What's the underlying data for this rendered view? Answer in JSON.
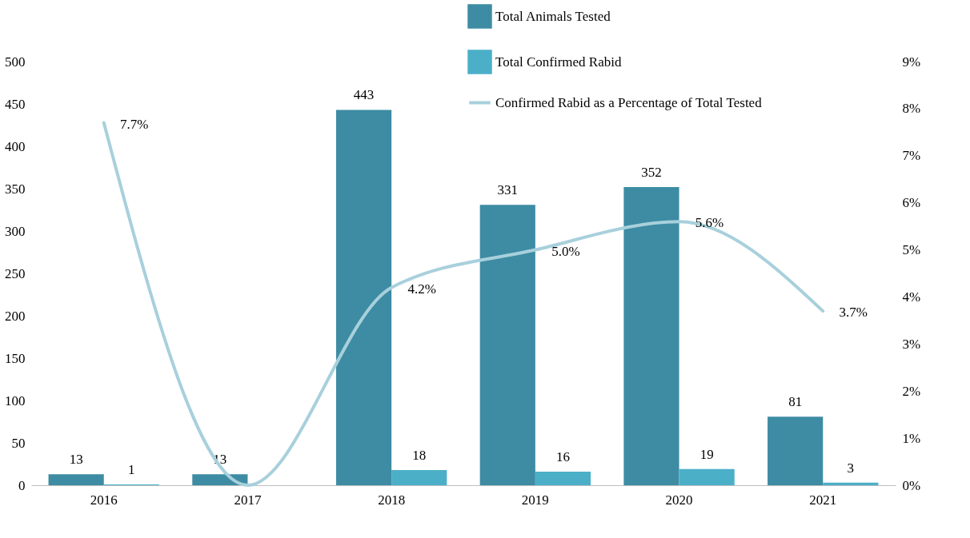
{
  "chart_data": {
    "type": "bar",
    "categories": [
      "2016",
      "2017",
      "2018",
      "2019",
      "2020",
      "2021"
    ],
    "series": [
      {
        "name": "Total Animals Tested",
        "color": "#3d8ca3",
        "values": [
          13,
          13,
          443,
          331,
          352,
          81
        ],
        "value_labels": [
          "13",
          "13",
          "443",
          "331",
          "352",
          "81"
        ]
      },
      {
        "name": "Total Confirmed Rabid",
        "color": "#4bafc8",
        "values": [
          1,
          0,
          18,
          16,
          19,
          3
        ],
        "value_labels": [
          "1",
          null,
          "18",
          "16",
          "19",
          "3"
        ]
      },
      {
        "name": "Confirmed Rabid as a Percentage of Total Tested",
        "type": "line",
        "axis": "y2",
        "color": "#a8d0dc",
        "values": [
          7.7,
          0,
          4.2,
          5.0,
          5.6,
          3.7
        ],
        "value_labels": [
          "7.7%",
          null,
          "4.2%",
          "5.0%",
          "5.6%",
          "3.7%"
        ]
      }
    ],
    "ylim": [
      0,
      500
    ],
    "yticks": [
      0,
      50,
      100,
      150,
      200,
      250,
      300,
      350,
      400,
      450,
      500
    ],
    "y2lim": [
      0,
      9
    ],
    "y2ticks": [
      {
        "value": 0,
        "label": "0%"
      },
      {
        "value": 1,
        "label": "1%"
      },
      {
        "value": 2,
        "label": "2%"
      },
      {
        "value": 3,
        "label": "3%"
      },
      {
        "value": 4,
        "label": "4%"
      },
      {
        "value": 5,
        "label": "5%"
      },
      {
        "value": 6,
        "label": "6%"
      },
      {
        "value": 7,
        "label": "7%"
      },
      {
        "value": 8,
        "label": "8%"
      },
      {
        "value": 9,
        "label": "9%"
      }
    ],
    "grid": false,
    "legend": "top right"
  }
}
